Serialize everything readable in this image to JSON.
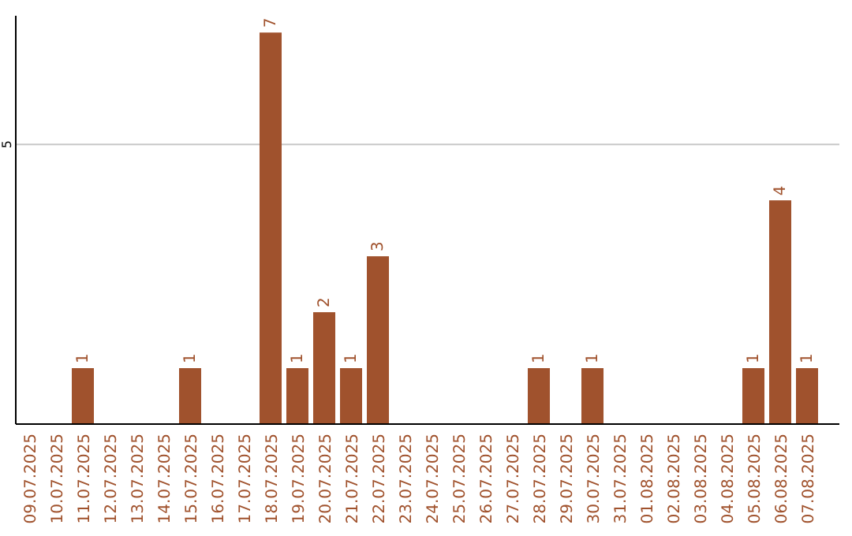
{
  "chart_data": {
    "type": "bar",
    "categories": [
      "09.07.2025",
      "10.07.2025",
      "11.07.2025",
      "12.07.2025",
      "13.07.2025",
      "14.07.2025",
      "15.07.2025",
      "16.07.2025",
      "17.07.2025",
      "18.07.2025",
      "19.07.2025",
      "20.07.2025",
      "21.07.2025",
      "22.07.2025",
      "23.07.2025",
      "24.07.2025",
      "25.07.2025",
      "26.07.2025",
      "27.07.2025",
      "28.07.2025",
      "29.07.2025",
      "30.07.2025",
      "31.07.2025",
      "01.08.2025",
      "02.08.2025",
      "03.08.2025",
      "04.08.2025",
      "05.08.2025",
      "06.08.2025",
      "07.08.2025"
    ],
    "values": [
      0,
      0,
      1,
      0,
      0,
      0,
      1,
      0,
      0,
      7,
      1,
      2,
      1,
      3,
      0,
      0,
      0,
      0,
      0,
      1,
      0,
      1,
      0,
      0,
      0,
      0,
      0,
      1,
      4,
      1
    ],
    "value_labels": [
      null,
      null,
      "1",
      null,
      null,
      null,
      "1",
      null,
      null,
      "7",
      "1",
      "2",
      "1",
      "3",
      null,
      null,
      null,
      null,
      null,
      "1",
      null,
      "1",
      null,
      null,
      null,
      null,
      null,
      "1",
      "4",
      "1"
    ],
    "color": "#a0522d",
    "ylim": [
      0,
      7.3
    ],
    "yticks": [
      5
    ],
    "grid": "y"
  }
}
